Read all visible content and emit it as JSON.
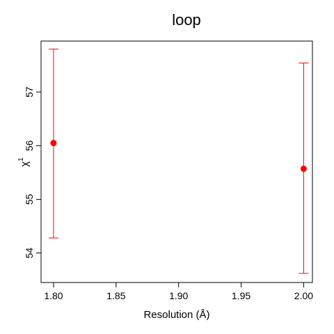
{
  "chart_data": {
    "type": "scatter",
    "title": "loop",
    "xlabel": "Resolution (Å)",
    "ylabel": "χ1",
    "ylabel_parts": {
      "base": "χ",
      "superscript": "1"
    },
    "xlim": [
      1.79,
      2.007
    ],
    "ylim": [
      53.45,
      57.95
    ],
    "x_ticks": [
      1.8,
      1.85,
      1.9,
      1.95,
      2.0
    ],
    "x_tick_labels": [
      "1.80",
      "1.85",
      "1.90",
      "1.95",
      "2.00"
    ],
    "y_ticks": [
      54,
      55,
      56,
      57
    ],
    "y_tick_labels": [
      "54",
      "55",
      "56",
      "57"
    ],
    "grid": false,
    "series": [
      {
        "color": "#ff0000",
        "points": [
          {
            "x": 1.8,
            "y": 56.05,
            "err_low": 54.28,
            "err_high": 57.8
          },
          {
            "x": 2.0,
            "y": 55.57,
            "err_low": 53.62,
            "err_high": 57.54
          }
        ]
      }
    ]
  }
}
